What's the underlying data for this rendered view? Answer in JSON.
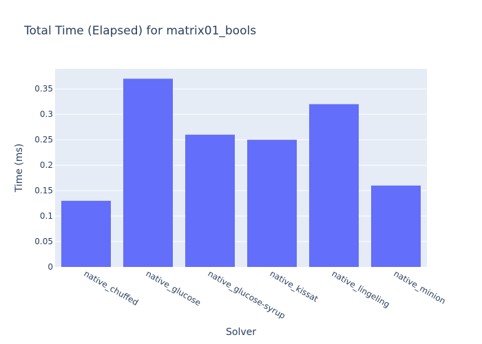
{
  "chart_data": {
    "type": "bar",
    "title": "Total Time (Elapsed) for matrix01_bools",
    "xlabel": "Solver",
    "ylabel": "Time (ms)",
    "categories": [
      "native_chuffed",
      "native_glucose",
      "native_glucose-syrup",
      "native_kissat",
      "native_lingeling",
      "native_minion"
    ],
    "values": [
      0.13,
      0.37,
      0.26,
      0.25,
      0.32,
      0.16
    ],
    "ylim": [
      0,
      0.3895
    ],
    "yticks": [
      0,
      0.05,
      0.1,
      0.15,
      0.2,
      0.25,
      0.3,
      0.35
    ],
    "ytick_labels": [
      "0",
      "0.05",
      "0.1",
      "0.15",
      "0.2",
      "0.25",
      "0.3",
      "0.35"
    ],
    "grid": true,
    "colors": {
      "bar": "#636efa",
      "plot_bg": "#e5ecf6",
      "grid": "#ffffff",
      "text": "#2a3f5f"
    }
  }
}
